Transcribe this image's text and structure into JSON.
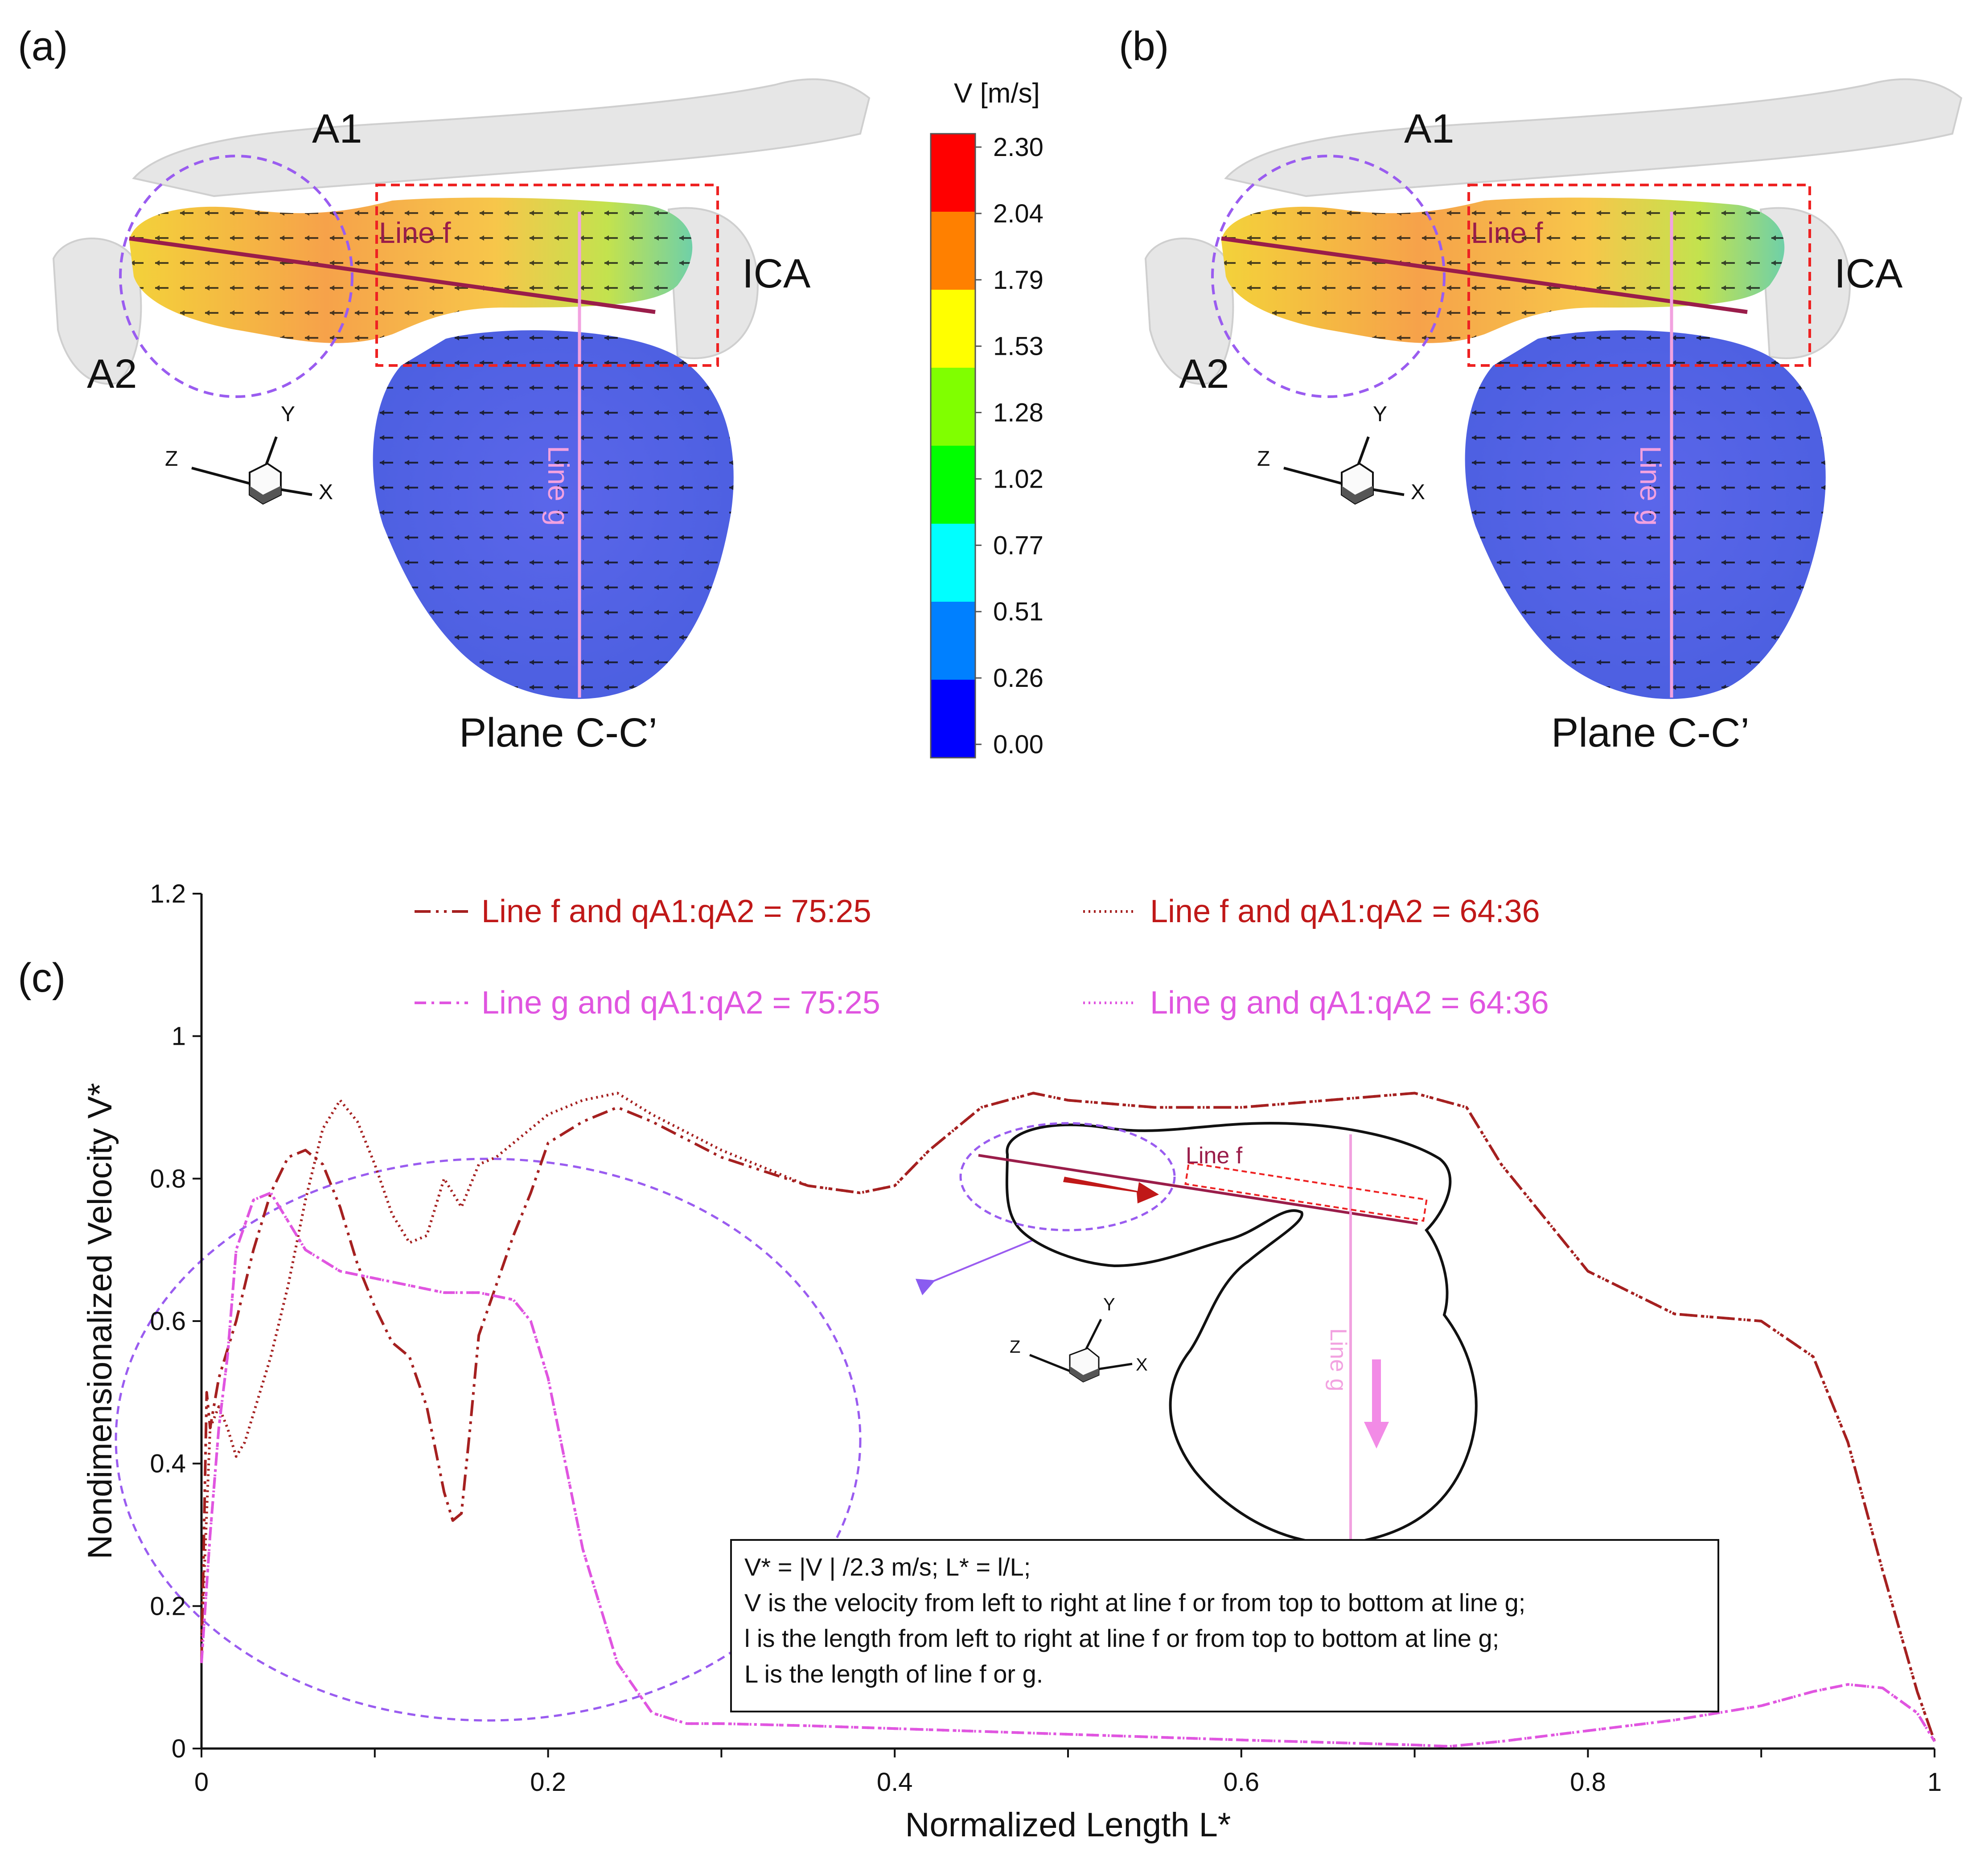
{
  "panels": {
    "a": {
      "label": "(a)",
      "vessel_a1": "A1",
      "vessel_a2": "A2",
      "vessel_ica": "ICA",
      "line_f": "Line f",
      "line_g": "Line g",
      "plane": "Plane C-C’",
      "axis_x": "X",
      "axis_y": "Y",
      "axis_z": "Z"
    },
    "b": {
      "label": "(b)",
      "vessel_a1": "A1",
      "vessel_a2": "A2",
      "vessel_ica": "ICA",
      "line_f": "Line f",
      "line_g": "Line g",
      "plane": "Plane C-C’",
      "axis_x": "X",
      "axis_y": "Y",
      "axis_z": "Z"
    },
    "c": {
      "label": "(c)"
    }
  },
  "colorbar": {
    "title": "V [m/s]",
    "ticks": [
      "2.30",
      "2.04",
      "1.79",
      "1.53",
      "1.28",
      "1.02",
      "0.77",
      "0.51",
      "0.26",
      "0.00"
    ],
    "colors": [
      "#ff0000",
      "#ff8000",
      "#ffff00",
      "#80ff00",
      "#00ff00",
      "#00ffff",
      "#0080ff",
      "#0000ff"
    ]
  },
  "inset": {
    "line_f": "Line f",
    "line_g": "Line g",
    "axis_x": "X",
    "axis_y": "Y",
    "axis_z": "Z"
  },
  "note": {
    "line1": "V* = |V | /2.3 m/s; L* = l/L;",
    "line2": "V is the velocity from left to right at line f or from top to bottom at line g;",
    "line3": "l is the length from left to right at line f or from top to bottom at line g;",
    "line4": "L is  the length of line f or g."
  },
  "chart_data": {
    "type": "line",
    "title": "",
    "xlabel": "Normalized Length L*",
    "ylabel": "Nondimensionalized Velocity V*",
    "xlim": [
      0,
      1
    ],
    "ylim": [
      0,
      1.2
    ],
    "xticks": [
      0,
      0.1,
      0.2,
      0.3,
      0.4,
      0.5,
      0.6,
      0.7,
      0.8,
      0.9,
      1
    ],
    "xtick_labels": [
      "0",
      "",
      "0.2",
      "",
      "0.4",
      "",
      "0.6",
      "",
      "0.8",
      "",
      "1"
    ],
    "yticks": [
      0,
      0.2,
      0.4,
      0.6,
      0.8,
      1,
      1.2
    ],
    "ytick_labels": [
      "0",
      "0.2",
      "0.4",
      "0.6",
      "0.8",
      "1",
      "1.2"
    ],
    "series": [
      {
        "name": "Line f and qA1:qA2 = 75:25",
        "color": "#a52020",
        "dash": "dash-dot-dot",
        "x": [
          0,
          0.003,
          0.005,
          0.01,
          0.02,
          0.03,
          0.04,
          0.05,
          0.06,
          0.07,
          0.08,
          0.09,
          0.1,
          0.11,
          0.12,
          0.13,
          0.14,
          0.145,
          0.15,
          0.155,
          0.16,
          0.17,
          0.18,
          0.19,
          0.2,
          0.22,
          0.24,
          0.26,
          0.3,
          0.35,
          0.38,
          0.4,
          0.42,
          0.45,
          0.48,
          0.5,
          0.55,
          0.6,
          0.65,
          0.7,
          0.73,
          0.75,
          0.8,
          0.85,
          0.9,
          0.93,
          0.95,
          0.97,
          0.99,
          1
        ],
        "y": [
          0.12,
          0.5,
          0.45,
          0.52,
          0.6,
          0.7,
          0.78,
          0.83,
          0.84,
          0.82,
          0.76,
          0.68,
          0.62,
          0.57,
          0.55,
          0.48,
          0.36,
          0.32,
          0.33,
          0.45,
          0.58,
          0.65,
          0.72,
          0.78,
          0.85,
          0.88,
          0.9,
          0.88,
          0.83,
          0.79,
          0.78,
          0.79,
          0.84,
          0.9,
          0.92,
          0.91,
          0.9,
          0.9,
          0.91,
          0.92,
          0.9,
          0.82,
          0.67,
          0.61,
          0.6,
          0.55,
          0.43,
          0.25,
          0.08,
          0.01
        ]
      },
      {
        "name": "Line f and qA1:qA2 = 64:36",
        "color": "#a52020",
        "dash": "dot",
        "x": [
          0,
          0.005,
          0.01,
          0.015,
          0.02,
          0.025,
          0.03,
          0.04,
          0.05,
          0.06,
          0.07,
          0.08,
          0.09,
          0.1,
          0.11,
          0.12,
          0.13,
          0.14,
          0.15,
          0.16,
          0.17,
          0.18,
          0.2,
          0.22,
          0.24,
          0.26,
          0.3,
          0.35,
          0.38,
          0.4,
          0.42,
          0.45,
          0.48,
          0.5,
          0.55,
          0.6,
          0.65,
          0.7,
          0.73,
          0.75,
          0.8,
          0.85,
          0.9,
          0.93,
          0.95,
          0.97,
          0.99,
          1
        ],
        "y": [
          0.15,
          0.45,
          0.48,
          0.45,
          0.41,
          0.43,
          0.47,
          0.55,
          0.65,
          0.77,
          0.87,
          0.91,
          0.88,
          0.82,
          0.75,
          0.71,
          0.72,
          0.8,
          0.76,
          0.82,
          0.83,
          0.85,
          0.89,
          0.91,
          0.92,
          0.89,
          0.84,
          0.79,
          0.78,
          0.79,
          0.84,
          0.9,
          0.92,
          0.91,
          0.9,
          0.9,
          0.91,
          0.92,
          0.9,
          0.82,
          0.67,
          0.61,
          0.6,
          0.55,
          0.43,
          0.25,
          0.08,
          0.01
        ]
      },
      {
        "name": "Line g and qA1:qA2 = 75:25",
        "color": "#e055e0",
        "dash": "dash-dot",
        "x": [
          0,
          0.005,
          0.01,
          0.015,
          0.02,
          0.03,
          0.04,
          0.05,
          0.06,
          0.08,
          0.1,
          0.12,
          0.14,
          0.16,
          0.18,
          0.19,
          0.2,
          0.21,
          0.22,
          0.24,
          0.26,
          0.28,
          0.3,
          0.35,
          0.4,
          0.5,
          0.6,
          0.7,
          0.72,
          0.75,
          0.8,
          0.85,
          0.9,
          0.93,
          0.95,
          0.97,
          0.99,
          1
        ],
        "y": [
          0.12,
          0.3,
          0.45,
          0.55,
          0.7,
          0.77,
          0.78,
          0.74,
          0.7,
          0.67,
          0.66,
          0.65,
          0.64,
          0.64,
          0.63,
          0.6,
          0.52,
          0.4,
          0.28,
          0.12,
          0.05,
          0.035,
          0.035,
          0.032,
          0.028,
          0.02,
          0.012,
          0.005,
          0.003,
          0.01,
          0.025,
          0.04,
          0.06,
          0.08,
          0.09,
          0.085,
          0.05,
          0.01
        ]
      },
      {
        "name": "Line g and qA1:qA2 = 64:36",
        "color": "#e055e0",
        "dash": "dot",
        "x": [
          0,
          0.005,
          0.01,
          0.015,
          0.02,
          0.03,
          0.04,
          0.05,
          0.06,
          0.08,
          0.1,
          0.12,
          0.14,
          0.16,
          0.18,
          0.19,
          0.2,
          0.21,
          0.22,
          0.24,
          0.26,
          0.28,
          0.3,
          0.35,
          0.4,
          0.5,
          0.6,
          0.7,
          0.72,
          0.75,
          0.8,
          0.85,
          0.9,
          0.93,
          0.95,
          0.97,
          0.99,
          1
        ],
        "y": [
          0.12,
          0.3,
          0.45,
          0.55,
          0.7,
          0.77,
          0.78,
          0.74,
          0.7,
          0.67,
          0.66,
          0.65,
          0.64,
          0.64,
          0.63,
          0.6,
          0.52,
          0.4,
          0.28,
          0.12,
          0.05,
          0.035,
          0.035,
          0.032,
          0.028,
          0.02,
          0.012,
          0.005,
          0.003,
          0.01,
          0.025,
          0.04,
          0.06,
          0.08,
          0.09,
          0.085,
          0.05,
          0.01
        ]
      }
    ]
  }
}
